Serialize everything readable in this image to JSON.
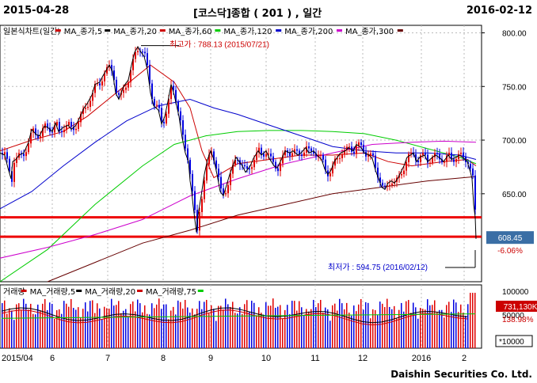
{
  "header": {
    "start_date": "2015-04-28",
    "title": "[코스닥]종합  ( 201 ) , 일간",
    "end_date": "2016-02-12"
  },
  "footer": {
    "credit": "Daishin Securities Co. Ltd."
  },
  "chart_data": [
    {
      "type": "candlestick",
      "legend": [
        {
          "name": "일본식차트(일간)",
          "color": "#cc0000"
        },
        {
          "name": "MA_종가,5",
          "color": "#000000"
        },
        {
          "name": "MA_종가,20",
          "color": "#cc0000"
        },
        {
          "name": "MA_종가,60",
          "color": "#00cc00"
        },
        {
          "name": "MA_종가,120",
          "color": "#0000cc"
        },
        {
          "name": "MA_종가,200",
          "color": "#cc00cc"
        },
        {
          "name": "MA_종가,300",
          "color": "#660000"
        }
      ],
      "y_ticks": [
        "800.00",
        "750.00",
        "700.00",
        "650.00"
      ],
      "ylim": [
        568,
        807
      ],
      "annotations": {
        "high": "최고가 : 788.13 (2015/07/21)",
        "low": "최저가 : 594.75 (2016/02/12)",
        "last_price": "608.45",
        "last_change": "-6.06%"
      },
      "key_prices": {
        "high": 788.13,
        "low": 594.75,
        "support_1": 628,
        "support_2": 610,
        "last_close": 608.45
      },
      "highlight_lines": [
        628,
        610
      ],
      "close_path": [
        [
          0,
          688
        ],
        [
          6,
          686
        ],
        [
          10,
          674
        ],
        [
          14,
          664
        ],
        [
          16,
          680
        ],
        [
          20,
          682
        ],
        [
          24,
          686
        ],
        [
          30,
          688
        ],
        [
          36,
          698
        ],
        [
          40,
          710
        ],
        [
          46,
          705
        ],
        [
          50,
          704
        ],
        [
          56,
          713
        ],
        [
          60,
          712
        ],
        [
          66,
          708
        ],
        [
          70,
          716
        ],
        [
          74,
          708
        ],
        [
          80,
          712
        ],
        [
          86,
          714
        ],
        [
          90,
          710
        ],
        [
          96,
          714
        ],
        [
          100,
          720
        ],
        [
          106,
          730
        ],
        [
          110,
          734
        ],
        [
          116,
          742
        ],
        [
          120,
          752
        ],
        [
          126,
          754
        ],
        [
          130,
          760
        ],
        [
          134,
          765
        ],
        [
          138,
          770
        ],
        [
          142,
          764
        ],
        [
          146,
          744
        ],
        [
          150,
          738
        ],
        [
          156,
          750
        ],
        [
          162,
          756
        ],
        [
          166,
          770
        ],
        [
          170,
          782
        ],
        [
          174,
          787
        ],
        [
          178,
          782
        ],
        [
          182,
          778
        ],
        [
          186,
          766
        ],
        [
          190,
          744
        ],
        [
          194,
          732
        ],
        [
          200,
          728
        ],
        [
          204,
          715
        ],
        [
          208,
          722
        ],
        [
          212,
          736
        ],
        [
          216,
          752
        ],
        [
          220,
          742
        ],
        [
          226,
          722
        ],
        [
          230,
          702
        ],
        [
          234,
          688
        ],
        [
          238,
          680
        ],
        [
          240,
          662
        ],
        [
          242,
          652
        ],
        [
          244,
          638
        ],
        [
          246,
          626
        ],
        [
          248,
          614
        ],
        [
          250,
          630
        ],
        [
          254,
          648
        ],
        [
          258,
          668
        ],
        [
          262,
          682
        ],
        [
          266,
          690
        ],
        [
          270,
          682
        ],
        [
          274,
          668
        ],
        [
          278,
          652
        ],
        [
          282,
          648
        ],
        [
          286,
          658
        ],
        [
          290,
          668
        ],
        [
          294,
          676
        ],
        [
          298,
          684
        ],
        [
          302,
          680
        ],
        [
          306,
          676
        ],
        [
          310,
          670
        ],
        [
          316,
          676
        ],
        [
          320,
          683
        ],
        [
          326,
          690
        ],
        [
          330,
          686
        ],
        [
          336,
          690
        ],
        [
          340,
          683
        ],
        [
          346,
          676
        ],
        [
          350,
          674
        ],
        [
          356,
          683
        ],
        [
          360,
          690
        ],
        [
          366,
          688
        ],
        [
          370,
          690
        ],
        [
          376,
          686
        ],
        [
          380,
          688
        ],
        [
          386,
          693
        ],
        [
          390,
          688
        ],
        [
          396,
          690
        ],
        [
          400,
          686
        ],
        [
          406,
          682
        ],
        [
          410,
          673
        ],
        [
          414,
          668
        ],
        [
          418,
          672
        ],
        [
          422,
          680
        ],
        [
          426,
          684
        ],
        [
          430,
          688
        ],
        [
          436,
          690
        ],
        [
          440,
          693
        ],
        [
          446,
          690
        ],
        [
          450,
          696
        ],
        [
          456,
          693
        ],
        [
          460,
          688
        ],
        [
          466,
          686
        ],
        [
          470,
          683
        ],
        [
          474,
          672
        ],
        [
          478,
          664
        ],
        [
          482,
          656
        ],
        [
          486,
          654
        ],
        [
          490,
          660
        ],
        [
          494,
          662
        ],
        [
          498,
          660
        ],
        [
          502,
          664
        ],
        [
          506,
          670
        ],
        [
          510,
          676
        ],
        [
          514,
          684
        ],
        [
          518,
          686
        ],
        [
          522,
          688
        ],
        [
          526,
          680
        ],
        [
          530,
          684
        ],
        [
          536,
          686
        ],
        [
          540,
          680
        ],
        [
          546,
          684
        ],
        [
          550,
          686
        ],
        [
          556,
          683
        ],
        [
          560,
          680
        ],
        [
          566,
          686
        ],
        [
          570,
          682
        ],
        [
          576,
          684
        ],
        [
          580,
          686
        ],
        [
          586,
          683
        ],
        [
          590,
          680
        ],
        [
          594,
          670
        ],
        [
          596,
          664
        ],
        [
          598,
          640
        ],
        [
          600,
          628
        ],
        [
          601,
          608
        ]
      ],
      "ma_lines": [
        {
          "name": "MA_종가,20",
          "points": [
            [
              0,
              690
            ],
            [
              40,
              700
            ],
            [
              80,
              708
            ],
            [
              110,
              722
            ],
            [
              150,
              746
            ],
            [
              190,
              770
            ],
            [
              220,
              754
            ],
            [
              240,
              730
            ],
            [
              255,
              690
            ],
            [
              270,
              665
            ],
            [
              300,
              678
            ],
            [
              340,
              682
            ],
            [
              380,
              686
            ],
            [
              420,
              686
            ],
            [
              460,
              688
            ],
            [
              490,
              680
            ],
            [
              520,
              676
            ],
            [
              560,
              680
            ],
            [
              590,
              682
            ],
            [
              601,
              676
            ]
          ]
        },
        {
          "name": "MA_종가,60",
          "points": [
            [
              0,
              568
            ],
            [
              60,
              598
            ],
            [
              120,
              640
            ],
            [
              180,
              676
            ],
            [
              220,
              696
            ],
            [
              260,
              704
            ],
            [
              300,
              708
            ],
            [
              340,
              709
            ],
            [
              380,
              709
            ],
            [
              420,
              708
            ],
            [
              460,
              706
            ],
            [
              500,
              700
            ],
            [
              540,
              692
            ],
            [
              580,
              684
            ],
            [
              601,
              678
            ]
          ]
        },
        {
          "name": "MA_종가,120",
          "points": [
            [
              0,
              636
            ],
            [
              40,
              652
            ],
            [
              80,
              676
            ],
            [
              120,
              698
            ],
            [
              160,
              718
            ],
            [
              200,
              732
            ],
            [
              240,
              738
            ],
            [
              270,
              730
            ],
            [
              300,
              724
            ],
            [
              340,
              714
            ],
            [
              380,
              704
            ],
            [
              420,
              694
            ],
            [
              460,
              690
            ],
            [
              500,
              688
            ],
            [
              540,
              688
            ],
            [
              580,
              686
            ],
            [
              601,
              682
            ]
          ]
        },
        {
          "name": "MA_종가,200",
          "points": [
            [
              0,
              590
            ],
            [
              60,
              600
            ],
            [
              120,
              612
            ],
            [
              180,
              626
            ],
            [
              240,
              648
            ],
            [
              300,
              664
            ],
            [
              360,
              678
            ],
            [
              420,
              688
            ],
            [
              470,
              696
            ],
            [
              520,
              698
            ],
            [
              560,
              699
            ],
            [
              601,
              698
            ]
          ]
        },
        {
          "name": "MA_종가,300",
          "points": [
            [
              60,
              568
            ],
            [
              120,
              586
            ],
            [
              180,
              604
            ],
            [
              240,
              616
            ],
            [
              300,
              630
            ],
            [
              360,
              640
            ],
            [
              420,
              650
            ],
            [
              480,
              656
            ],
            [
              540,
              662
            ],
            [
              601,
              666
            ]
          ]
        }
      ]
    },
    {
      "type": "bar",
      "legend": [
        {
          "name": "거래량",
          "color": "#cc0000"
        },
        {
          "name": "MA_거래량,5",
          "color": "#000000"
        },
        {
          "name": "MA_거래량,20",
          "color": "#cc0000"
        },
        {
          "name": "MA_거래량,75",
          "color": "#00cc00"
        }
      ],
      "y_ticks": [
        "100000",
        "50000"
      ],
      "unit_label": "*10000",
      "annotations": {
        "last_volume": "731,130K",
        "last_change": "138.98%"
      },
      "x_ticks": [
        "2015/04",
        "6",
        "7",
        "8",
        "9",
        "10",
        "11",
        "12",
        "2016",
        "2"
      ]
    }
  ]
}
